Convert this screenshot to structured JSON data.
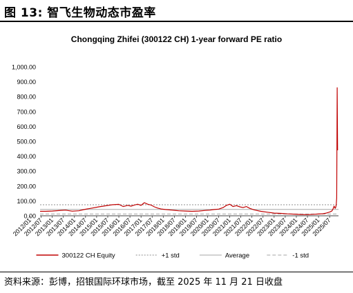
{
  "figure_label": "图 13: 智飞生物动态市盈率",
  "source_note": "资料来源：彭博，招银国际环球市场，截至 2025 年 11 月 21 日收盘",
  "chart_data": {
    "type": "line",
    "title": "Chongqing Zhifei (300122 CH) 1-year forward PE ratio",
    "xlabel": "",
    "ylabel": "",
    "ylim": [
      0,
      1000
    ],
    "y_ticks": [
      "1,000.00",
      "900.00",
      "800.00",
      "700.00",
      "600.00",
      "500.00",
      "400.00",
      "300.00",
      "200.00",
      "100.00",
      "0.00"
    ],
    "y_tick_values": [
      1000,
      900,
      800,
      700,
      600,
      500,
      400,
      300,
      200,
      100,
      0
    ],
    "x_range": [
      2012.45,
      2025.9
    ],
    "x_ticks": [
      "2012/01",
      "2012/07",
      "2013/01",
      "2013/07",
      "2014/01",
      "2014/07",
      "2015/01",
      "2015/07",
      "2016/01",
      "2016/07",
      "2017/01",
      "2017/07",
      "2018/01",
      "2018/07",
      "2019/01",
      "2019/07",
      "2020/01",
      "2020/07",
      "2021/01",
      "2021/07",
      "2022/01",
      "2022/07",
      "2023/01",
      "2023/07",
      "2024/01",
      "2024/07",
      "2025/01",
      "2025/07"
    ],
    "grid": false,
    "legend_position": "bottom",
    "series": [
      {
        "name": "300122 CH Equity",
        "color": "#c00000",
        "style": "solid",
        "x": [
          2012.45,
          2012.7,
          2013.0,
          2013.3,
          2013.6,
          2013.9,
          2014.2,
          2014.5,
          2014.8,
          2015.1,
          2015.4,
          2015.7,
          2016.0,
          2016.2,
          2016.4,
          2016.55,
          2016.7,
          2016.85,
          2017.0,
          2017.15,
          2017.3,
          2017.45,
          2017.6,
          2017.75,
          2017.9,
          2018.1,
          2018.4,
          2018.7,
          2019.0,
          2019.3,
          2019.6,
          2019.9,
          2020.1,
          2020.3,
          2020.5,
          2020.7,
          2020.85,
          2021.0,
          2021.15,
          2021.3,
          2021.45,
          2021.6,
          2021.75,
          2021.9,
          2022.1,
          2022.4,
          2022.7,
          2023.0,
          2023.3,
          2023.6,
          2023.9,
          2024.2,
          2024.5,
          2024.8,
          2025.0,
          2025.2,
          2025.35,
          2025.5,
          2025.6,
          2025.65,
          2025.7,
          2025.75,
          2025.78,
          2025.8,
          2025.82,
          2025.84,
          2025.86
        ],
        "values": [
          30,
          30,
          32,
          35,
          38,
          31,
          34,
          44,
          52,
          60,
          67,
          74,
          77,
          62,
          70,
          65,
          72,
          78,
          70,
          88,
          78,
          72,
          60,
          52,
          46,
          42,
          38,
          34,
          32,
          30,
          32,
          36,
          38,
          42,
          45,
          55,
          70,
          78,
          62,
          68,
          60,
          55,
          62,
          50,
          40,
          30,
          24,
          18,
          16,
          13,
          11,
          9,
          8,
          10,
          12,
          14,
          18,
          25,
          32,
          45,
          65,
          50,
          58,
          80,
          120,
          860,
          440
        ]
      },
      {
        "name": "+1 std",
        "color": "#8c8c8c",
        "style": "dotted",
        "constant": 74
      },
      {
        "name": "Average",
        "color": "#a6a6a6",
        "style": "solid",
        "constant": 43
      },
      {
        "name": "-1 std",
        "color": "#a6a6a6",
        "style": "dashed",
        "constant": 12
      }
    ]
  }
}
